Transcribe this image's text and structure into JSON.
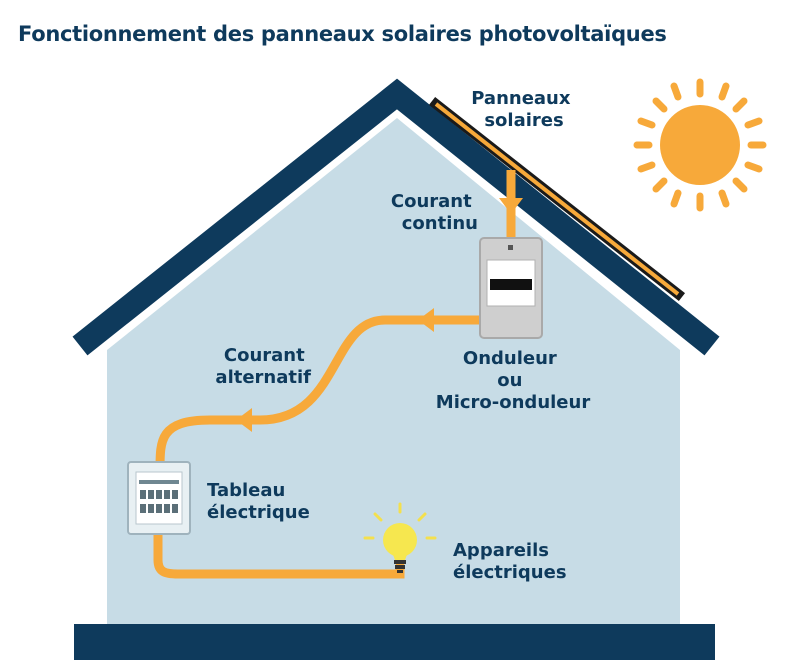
{
  "title": "Fonctionnement des panneaux solaires photovoltaïques",
  "labels": {
    "panels": [
      "Panneaux",
      "solaires"
    ],
    "dc": [
      "Courant",
      "continu"
    ],
    "inverter": [
      "Onduleur",
      "ou",
      "Micro-onduleur"
    ],
    "ac": [
      "Courant",
      "alternatif"
    ],
    "panel_board": [
      "Tableau",
      "électrique"
    ],
    "appliances": [
      "Appareils",
      "électriques"
    ]
  },
  "colors": {
    "house_fill": "#c7dce6",
    "roof": "#0e3a5c",
    "flow": "#f7a93a",
    "sun": "#f7a93a",
    "text": "#0e3a5c"
  },
  "icons": [
    "sun-icon",
    "solar-panel-icon",
    "inverter-icon",
    "electrical-panel-icon",
    "light-bulb-icon"
  ]
}
